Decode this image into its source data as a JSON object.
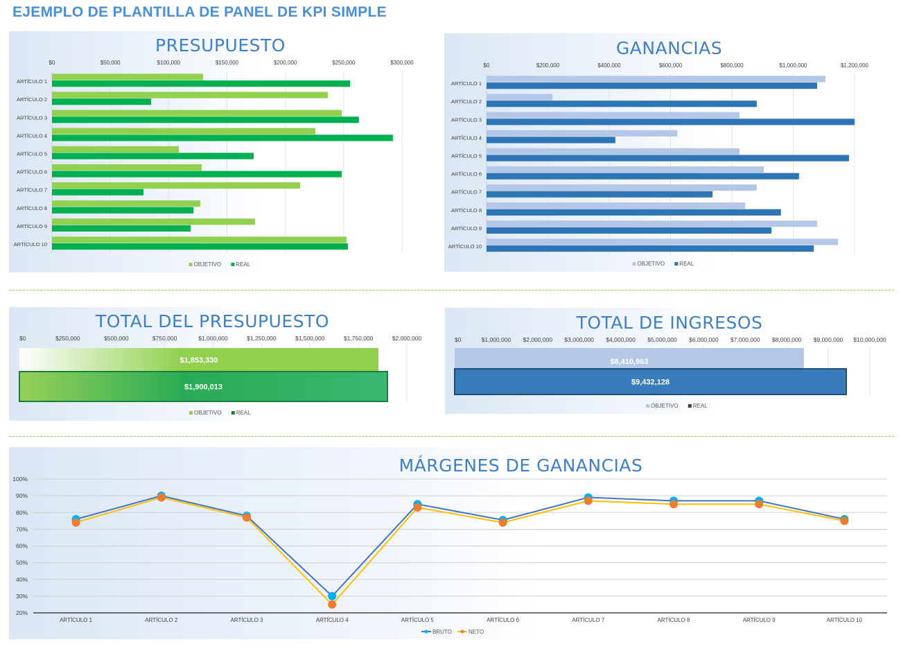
{
  "title": "EJEMPLO DE PLANTILLA DE PANEL DE KPI SIMPLE",
  "colors": {
    "title": "#4a8fd6",
    "green_light": "#92d050",
    "green_dark": "#00b050",
    "blue_light": "#b4c7e7",
    "blue_dark": "#2e75b6",
    "bruto": "#4472c4",
    "bruto_marker": "#00b0f0",
    "neto": "#ffc000",
    "neto_marker": "#ed7d31",
    "divider": "#92d050"
  },
  "chart_data": [
    {
      "type": "bar",
      "orientation": "horizontal",
      "title": "PRESUPUESTO",
      "categories": [
        "ARTÍCULO 1",
        "ARTÍCULO 2",
        "ARTÍCULO 3",
        "ARTÍCULO 4",
        "ARTÍCULO 5",
        "ARTÍCULO 6",
        "ARTÍCULO 7",
        "ARTÍCULO 8",
        "ARTÍCULO 9",
        "ARTÍCULO 10"
      ],
      "series": [
        {
          "name": "OBJETIVO",
          "color": "#92d050",
          "values": [
            129500,
            236400,
            248300,
            225700,
            108700,
            128300,
            212700,
            127100,
            174000,
            252500
          ]
        },
        {
          "name": "REAL",
          "color": "#00b050",
          "values": [
            255500,
            85000,
            263100,
            292200,
            172900,
            248300,
            78400,
            121200,
            118800,
            253700
          ]
        }
      ],
      "xlim": [
        0,
        300000
      ],
      "ticks": [
        {
          "v": 0,
          "label": "$0"
        },
        {
          "v": 50000,
          "label": "$50,000"
        },
        {
          "v": 100000,
          "label": "$100,000"
        },
        {
          "v": 150000,
          "label": "$150,000"
        },
        {
          "v": 200000,
          "label": "$200,000"
        },
        {
          "v": 250000,
          "label": "$250,000"
        },
        {
          "v": 300000,
          "label": "$300,000"
        }
      ],
      "grid": true,
      "legend": "bottom"
    },
    {
      "type": "bar",
      "orientation": "horizontal",
      "title": "GANANCIAS",
      "categories": [
        "ARTÍCULO 1",
        "ARTÍCULO 2",
        "ARTÍCULO 3",
        "ARTÍCULO 4",
        "ARTÍCULO 5",
        "ARTÍCULO 6",
        "ARTÍCULO 7",
        "ARTÍCULO 8",
        "ARTÍCULO 9",
        "ARTÍCULO 10"
      ],
      "series": [
        {
          "name": "OBJETIVO",
          "color": "#b4c7e7",
          "values": [
            1105000,
            215000,
            825000,
            622000,
            825000,
            904000,
            881000,
            843000,
            1078000,
            1146000
          ]
        },
        {
          "name": "REAL",
          "color": "#2e75b6",
          "values": [
            1078000,
            881000,
            1200000,
            420000,
            1182000,
            1019000,
            737000,
            960000,
            929000,
            1067000
          ]
        }
      ],
      "xlim": [
        0,
        1200000
      ],
      "ticks": [
        {
          "v": 0,
          "label": "$0"
        },
        {
          "v": 200000,
          "label": "$200,000"
        },
        {
          "v": 400000,
          "label": "$400,000"
        },
        {
          "v": 600000,
          "label": "$600,000"
        },
        {
          "v": 800000,
          "label": "$800,000"
        },
        {
          "v": 1000000,
          "label": "$1,000,000"
        },
        {
          "v": 1200000,
          "label": "$1,200,000"
        }
      ],
      "grid": true,
      "legend": "bottom"
    },
    {
      "type": "bar",
      "orientation": "horizontal",
      "title": "TOTAL DEL PRESUPUESTO",
      "series": [
        {
          "name": "OBJETIVO",
          "color": "#92d050",
          "values": [
            1853330
          ],
          "label": "$1,853,330"
        },
        {
          "name": "REAL",
          "color": "#1e9e4a",
          "values": [
            1900013
          ],
          "label": "$1,900,013"
        }
      ],
      "xlim": [
        0,
        2000000
      ],
      "ticks": [
        {
          "v": 0,
          "label": "$0"
        },
        {
          "v": 250000,
          "label": "$250,000"
        },
        {
          "v": 500000,
          "label": "$500,000"
        },
        {
          "v": 750000,
          "label": "$750,000"
        },
        {
          "v": 1000000,
          "label": "$1,000,000"
        },
        {
          "v": 1250000,
          "label": "$1,250,000"
        },
        {
          "v": 1500000,
          "label": "$1,500,000"
        },
        {
          "v": 1750000,
          "label": "$1,750,000"
        },
        {
          "v": 2000000,
          "label": "$2,000,000"
        }
      ],
      "grid": true,
      "legend": "bottom"
    },
    {
      "type": "bar",
      "orientation": "horizontal",
      "title": "TOTAL DE INGRESOS",
      "series": [
        {
          "name": "OBJETIVO",
          "color": "#b4c7e7",
          "values": [
            8410963
          ],
          "label": "$8,410,963"
        },
        {
          "name": "REAL",
          "color": "#2e75b6",
          "values": [
            9432128
          ],
          "label": "$9,432,128"
        }
      ],
      "xlim": [
        0,
        10000000
      ],
      "ticks": [
        {
          "v": 0,
          "label": "$0"
        },
        {
          "v": 1000000,
          "label": "$1,000,000"
        },
        {
          "v": 2000000,
          "label": "$2,000,000"
        },
        {
          "v": 3000000,
          "label": "$3,000,000"
        },
        {
          "v": 4000000,
          "label": "$4,000,000"
        },
        {
          "v": 5000000,
          "label": "$5,000,000"
        },
        {
          "v": 6000000,
          "label": "$6,000,000"
        },
        {
          "v": 7000000,
          "label": "$7,000,000"
        },
        {
          "v": 8000000,
          "label": "$8,000,000"
        },
        {
          "v": 9000000,
          "label": "$9,000,000"
        },
        {
          "v": 10000000,
          "label": "$10,000,000"
        }
      ],
      "grid": true,
      "legend": "bottom"
    },
    {
      "type": "line",
      "title": "MÁRGENES DE GANANCIAS",
      "categories": [
        "ARTÍCULO 1",
        "ARTÍCULO 2",
        "ARTÍCULO 3",
        "ARTÍCULO 4",
        "ARTÍCULO 5",
        "ARTÍCULO 6",
        "ARTÍCULO 7",
        "ARTÍCULO 8",
        "ARTÍCULO 9",
        "ARTÍCULO 10"
      ],
      "series": [
        {
          "name": "BRUTO",
          "color": "#4472c4",
          "marker": "#00b0f0",
          "values": [
            76,
            90,
            78,
            30,
            85,
            75.5,
            89,
            87,
            87,
            76
          ]
        },
        {
          "name": "NETO",
          "color": "#ffc000",
          "marker": "#ed7d31",
          "values": [
            74,
            89,
            77,
            25,
            83,
            74,
            87,
            85,
            85,
            75
          ]
        }
      ],
      "ylim": [
        20,
        100
      ],
      "yticks": [
        {
          "v": 100,
          "label": "100%"
        },
        {
          "v": 90,
          "label": "90%"
        },
        {
          "v": 80,
          "label": "80%"
        },
        {
          "v": 70,
          "label": "70%"
        },
        {
          "v": 60,
          "label": "60%"
        },
        {
          "v": 50,
          "label": "50%"
        },
        {
          "v": 40,
          "label": "40%"
        },
        {
          "v": 30,
          "label": "30%"
        },
        {
          "v": 20,
          "label": "20%"
        }
      ],
      "grid": true,
      "legend": "bottom"
    }
  ]
}
